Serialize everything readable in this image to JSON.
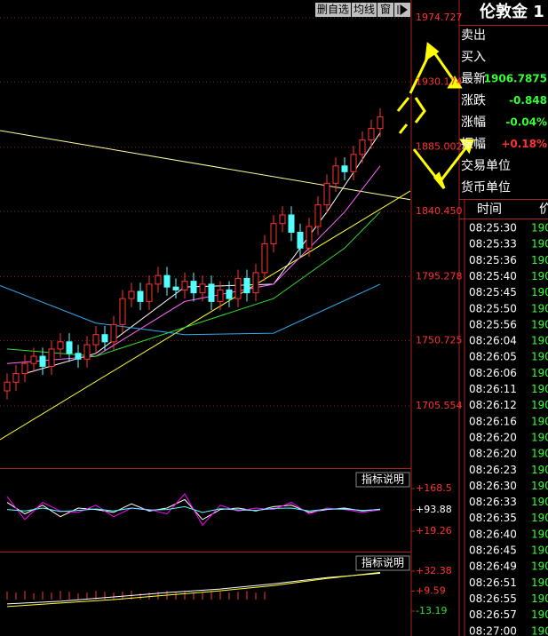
{
  "toolbar": [
    "删自选",
    "均线",
    "窗"
  ],
  "chart_data": [
    {
      "type": "candlestick",
      "xlim": [
        -0.8,
        45.4
      ],
      "ylim": [
        1662.4,
        1987.1
      ],
      "yticks": [
        1974.727,
        1930.174,
        1885.002,
        {
          "value": 1840.45,
          "label": "1840.450"
        },
        1795.278,
        1750.725,
        1705.554
      ],
      "grid": true,
      "up_color": "#ff3232",
      "down_color": "#54ffff",
      "candles": {
        "open": [
          1716,
          1722,
          1728,
          1735,
          1740,
          1733,
          1745,
          1750,
          1742,
          1738,
          1748,
          1755,
          1750,
          1762,
          1780,
          1785,
          1778,
          1790,
          1796,
          1788,
          1786,
          1792,
          1784,
          1790,
          1778,
          1786,
          1780,
          1794,
          1784,
          1798,
          1818,
          1832,
          1838,
          1826,
          1815,
          1830,
          1845,
          1860,
          1872,
          1868,
          1880,
          1890,
          1898
        ],
        "high": [
          1728,
          1734,
          1741,
          1746,
          1746,
          1751,
          1756,
          1756,
          1748,
          1754,
          1761,
          1761,
          1768,
          1786,
          1791,
          1791,
          1796,
          1802,
          1802,
          1794,
          1798,
          1798,
          1796,
          1796,
          1792,
          1792,
          1800,
          1800,
          1804,
          1824,
          1838,
          1844,
          1844,
          1832,
          1836,
          1851,
          1866,
          1878,
          1878,
          1886,
          1896,
          1904,
          1912
        ],
        "low": [
          1710,
          1716,
          1722,
          1729,
          1727,
          1727,
          1739,
          1736,
          1732,
          1732,
          1742,
          1744,
          1744,
          1756,
          1774,
          1772,
          1772,
          1784,
          1782,
          1780,
          1780,
          1778,
          1778,
          1772,
          1772,
          1774,
          1774,
          1778,
          1778,
          1792,
          1812,
          1826,
          1820,
          1809,
          1809,
          1824,
          1839,
          1854,
          1862,
          1862,
          1874,
          1884,
          1892
        ],
        "close": [
          1722,
          1728,
          1735,
          1740,
          1733,
          1745,
          1750,
          1742,
          1738,
          1748,
          1755,
          1750,
          1762,
          1780,
          1785,
          1778,
          1790,
          1796,
          1788,
          1786,
          1792,
          1784,
          1790,
          1778,
          1786,
          1780,
          1794,
          1784,
          1798,
          1818,
          1832,
          1838,
          1826,
          1815,
          1830,
          1845,
          1860,
          1872,
          1868,
          1880,
          1890,
          1898,
          1906
        ]
      },
      "series": [
        {
          "color": "#ffff99",
          "x": [
            -0.8,
            45.4
          ],
          "values": [
            1896.5,
            1848.6
          ]
        },
        {
          "color": "#ffff33",
          "x": [
            -0.8,
            45.4
          ],
          "values": [
            1682.2,
            1854.7
          ]
        },
        {
          "color": "#ffffff",
          "x": [
            2,
            10,
            20,
            30,
            36,
            42
          ],
          "values": [
            1728,
            1742,
            1788,
            1790,
            1840,
            1895
          ]
        },
        {
          "color": "#ff66ff",
          "x": [
            0,
            10,
            20,
            30,
            38,
            42
          ],
          "values": [
            1735,
            1740,
            1778,
            1790,
            1840,
            1872
          ]
        },
        {
          "color": "#33dd33",
          "x": [
            0,
            10,
            20,
            30,
            38,
            42
          ],
          "values": [
            1745,
            1740,
            1760,
            1780,
            1815,
            1840
          ]
        },
        {
          "color": "#33aaee",
          "x": [
            -0.8,
            10,
            20,
            30,
            42
          ],
          "values": [
            1789,
            1763,
            1755,
            1756,
            1790
          ]
        }
      ]
    },
    {
      "type": "line",
      "label": "指标说明",
      "xlim": [
        -0.8,
        45.4
      ],
      "ylim": [
        -49.1,
        236.9
      ],
      "yticks": [
        {
          "value": 168.5,
          "label": "+168.5"
        },
        {
          "value": 93.88,
          "label": "+93.88"
        },
        {
          "value": 19.26,
          "label": "+19.26"
        }
      ],
      "tick_colors": [
        "#ff3232",
        "#ffffff",
        "#ff3232"
      ],
      "series": [
        {
          "color": "#ffffff",
          "x": [
            0,
            2,
            4,
            6,
            8,
            10,
            12,
            14,
            16,
            18,
            20,
            22,
            24,
            26,
            28,
            30,
            32,
            34,
            36,
            38,
            40,
            42
          ],
          "values": [
            120,
            80,
            110,
            70,
            100,
            95,
            85,
            115,
            90,
            100,
            130,
            60,
            95,
            100,
            90,
            105,
            110,
            85,
            95,
            100,
            90,
            96
          ]
        },
        {
          "color": "#ff00ff",
          "x": [
            0,
            2,
            4,
            6,
            8,
            10,
            12,
            14,
            16,
            18,
            20,
            22,
            24,
            26,
            28,
            30,
            32,
            34,
            36,
            38,
            40,
            42
          ],
          "values": [
            140,
            60,
            120,
            90,
            85,
            110,
            70,
            100,
            95,
            80,
            150,
            40,
            110,
            90,
            100,
            95,
            120,
            80,
            100,
            95,
            85,
            94
          ]
        },
        {
          "color": "#54ffff",
          "x": [
            0,
            2,
            4,
            6,
            8,
            10,
            12,
            14,
            16,
            18,
            20,
            22,
            24,
            26,
            28,
            30,
            32,
            34,
            36,
            38,
            40,
            42
          ],
          "values": [
            95,
            90,
            100,
            88,
            92,
            97,
            90,
            100,
            93,
            95,
            105,
            85,
            98,
            94,
            92,
            99,
            100,
            90,
            96,
            97,
            92,
            95
          ]
        }
      ]
    },
    {
      "type": "line",
      "label": "指标说明",
      "xlim": [
        -0.8,
        45.4
      ],
      "ylim": [
        -41.55,
        53.65
      ],
      "yticks": [
        {
          "value": 32.38,
          "label": "+32.38"
        },
        {
          "value": 9.59,
          "label": "+9.59"
        },
        -13.19
      ],
      "tick_colors": [
        "#ff3232",
        "#ff3232",
        "#33dd33"
      ],
      "bars": {
        "color": "#ff3232",
        "values": [
          9,
          8,
          10,
          7,
          9,
          8,
          10,
          9,
          7,
          8,
          10,
          9,
          8,
          9,
          10,
          7,
          8,
          9,
          10,
          8,
          9,
          7,
          8,
          10,
          9,
          8,
          9,
          10,
          8,
          9
        ]
      },
      "series": [
        {
          "color": "#ffffff",
          "x": [
            0,
            6,
            12,
            18,
            24,
            30,
            36,
            42
          ],
          "values": [
            -5,
            -2,
            3,
            8,
            12,
            18,
            25,
            30
          ]
        },
        {
          "color": "#ffff33",
          "x": [
            0,
            6,
            12,
            18,
            24,
            30,
            36,
            42
          ],
          "values": [
            -8,
            -4,
            0,
            5,
            10,
            16,
            24,
            31
          ]
        }
      ]
    }
  ],
  "quote_panel": {
    "title": "伦敦金 1",
    "rows": [
      {
        "label": "卖出"
      },
      {
        "label": "买入"
      },
      {
        "label": "最新",
        "value": "1906.7875",
        "color": "#33ff33"
      },
      {
        "label": "涨跌",
        "value": "-0.848",
        "color": "#33ff33"
      },
      {
        "label": "涨幅",
        "value": "-0.04%",
        "color": "#33ff33"
      },
      {
        "label": "振幅",
        "value": "+0.18%",
        "color": "#ff3232"
      },
      {
        "label": "交易单位"
      },
      {
        "label": "货币单位"
      }
    ]
  },
  "trades": {
    "header": [
      "时间",
      "价"
    ],
    "rows": [
      [
        "08:25:30",
        "190"
      ],
      [
        "08:25:33",
        "190"
      ],
      [
        "08:25:36",
        "190"
      ],
      [
        "08:25:40",
        "190"
      ],
      [
        "08:25:45",
        "190"
      ],
      [
        "08:25:50",
        "190"
      ],
      [
        "08:25:56",
        "190"
      ],
      [
        "08:26:04",
        "190"
      ],
      [
        "08:26:05",
        "190"
      ],
      [
        "08:26:06",
        "190"
      ],
      [
        "08:26:11",
        "190"
      ],
      [
        "08:26:12",
        "190"
      ],
      [
        "08:26:16",
        "190"
      ],
      [
        "08:26:20",
        "190"
      ],
      [
        "08:26:20",
        "190"
      ],
      [
        "08:26:23",
        "190"
      ],
      [
        "08:26:30",
        "190"
      ],
      [
        "08:26:33",
        "190"
      ],
      [
        "08:26:35",
        "190"
      ],
      [
        "08:26:40",
        "190"
      ],
      [
        "08:26:45",
        "190"
      ],
      [
        "08:26:49",
        "190"
      ],
      [
        "08:26:51",
        "190"
      ],
      [
        "08:26:55",
        "190"
      ],
      [
        "08:26:57",
        "190"
      ],
      [
        "08:27:00",
        "190"
      ]
    ]
  }
}
